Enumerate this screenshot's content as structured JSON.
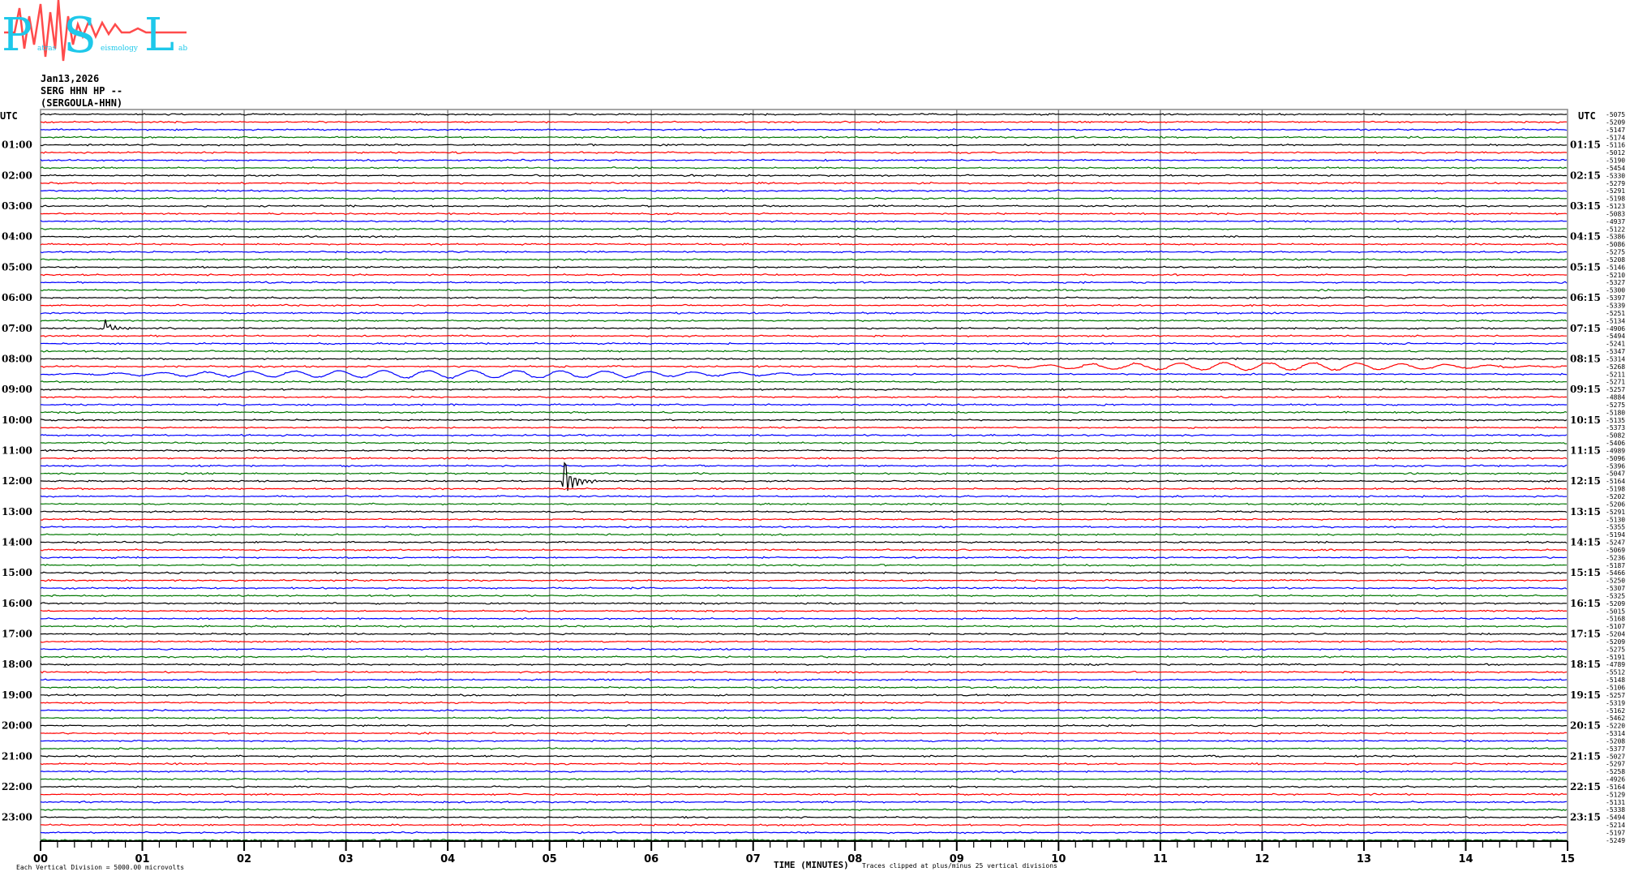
{
  "logo": {
    "letters": [
      "P",
      "S",
      "L"
    ],
    "subtext": [
      "atras",
      "eismology",
      "ab"
    ],
    "name": "Patras Seismology Lab",
    "colors": {
      "letters": "#1ec8ea",
      "wave": "#ff4b4b"
    }
  },
  "header": {
    "date": "Jan13,2026",
    "channel": "SERG HHN HP --",
    "station": "(SERGOULA-HHN)"
  },
  "chart_data": {
    "type": "line",
    "subtype": "helicorder",
    "xlabel": "TIME (MINUTES)",
    "xlim": [
      0,
      15
    ],
    "x_ticks": [
      "00",
      "01",
      "02",
      "03",
      "04",
      "05",
      "06",
      "07",
      "08",
      "09",
      "10",
      "11",
      "12",
      "13",
      "14",
      "15"
    ],
    "left_axis_title": "UTC",
    "right_axis_title": "UTC",
    "left_labels": [
      "01:00",
      "02:00",
      "03:00",
      "04:00",
      "05:00",
      "06:00",
      "07:00",
      "08:00",
      "09:00",
      "10:00",
      "11:00",
      "12:00",
      "13:00",
      "14:00",
      "15:00",
      "16:00",
      "17:00",
      "18:00",
      "19:00",
      "20:00",
      "21:00",
      "22:00",
      "23:00"
    ],
    "right_labels": [
      "01:15",
      "02:15",
      "03:15",
      "04:15",
      "05:15",
      "06:15",
      "07:15",
      "08:15",
      "09:15",
      "10:15",
      "11:15",
      "12:15",
      "13:15",
      "14:15",
      "15:15",
      "16:15",
      "17:15",
      "18:15",
      "19:15",
      "20:15",
      "21:15",
      "22:15",
      "23:15"
    ],
    "trace_colors": [
      "#000000",
      "#ff0000",
      "#0000ff",
      "#007700"
    ],
    "grid": true,
    "trace_offsets": [
      "-5075",
      "-5209",
      "-5147",
      "-5174",
      "-5116",
      "-5012",
      "-5190",
      "-5454",
      "-5330",
      "-5279",
      "-5291",
      "-5198",
      "-5123",
      "-5083",
      "-4937",
      "-5122",
      "-5386",
      "-5086",
      "-5275",
      "-5208",
      "-5146",
      "-5210",
      "-5327",
      "-5300",
      "-5397",
      "-5339",
      "-5251",
      "-5134",
      "-4906",
      "-5494",
      "-5241",
      "-5347",
      "-5314",
      "-5268",
      "-5211",
      "-5271",
      "-5257",
      "-4884",
      "-5275",
      "-5180",
      "-5135",
      "-5373",
      "-5082",
      "-5406",
      "-4989",
      "-5096",
      "-5396",
      "-5047",
      "-5164",
      "-5198",
      "-5202",
      "-5206",
      "-5291",
      "-5130",
      "-5355",
      "-5194",
      "-5247",
      "-5069",
      "-5236",
      "-5187",
      "-5466",
      "-5250",
      "-5307",
      "-5325",
      "-5209",
      "-5015",
      "-5168",
      "-5107",
      "-5204",
      "-5209",
      "-5275",
      "-5191",
      "-4789",
      "-5512",
      "-5148",
      "-5106",
      "-5257",
      "-5319",
      "-5162",
      "-5462",
      "-5220",
      "-5314",
      "-5208",
      "-5377",
      "-5027",
      "-5297",
      "-5258",
      "-4926",
      "-5164",
      "-5129",
      "-5131",
      "-5338",
      "-5494",
      "-5214",
      "-5197",
      "-5249"
    ],
    "events": [
      {
        "trace": 28,
        "minute": 0.63,
        "amplitude": "small"
      },
      {
        "trace": 48,
        "minute": 5.12,
        "amplitude": "large"
      },
      {
        "trace": 33,
        "minute_range": [
          9,
          15
        ],
        "amplitude": "long-period"
      },
      {
        "trace": 34,
        "minute_range": [
          0,
          8
        ],
        "amplitude": "long-period"
      }
    ],
    "footer_left": "Each Vertical Division = 5000.00 microvolts",
    "footer_right": "Traces clipped at plus/minus 25 vertical divisions"
  }
}
